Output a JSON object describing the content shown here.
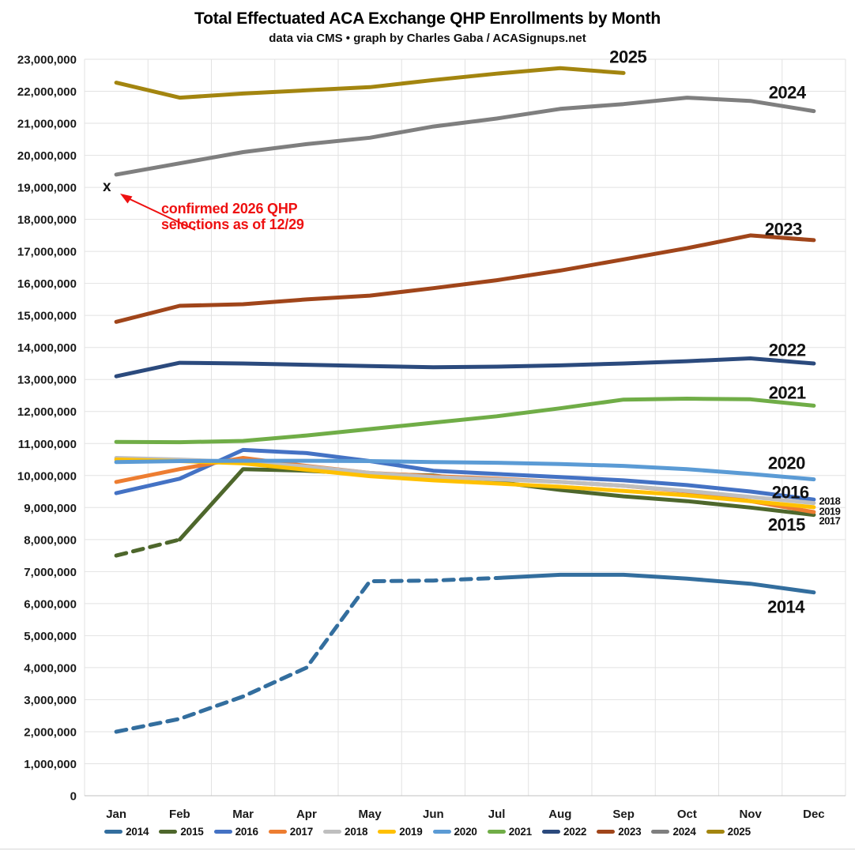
{
  "title": "Total Effectuated ACA Exchange QHP Enrollments by Month",
  "subtitle": "data via CMS • graph by Charles Gaba / ACASignups.net",
  "annotation": {
    "marker": "x",
    "text_line1": "confirmed 2026 QHP",
    "text_line2": "selections as of 12/29",
    "color": "#ee1111",
    "marker_month": "Jan",
    "marker_value": 19000000
  },
  "chart_data": {
    "type": "line",
    "categories": [
      "Jan",
      "Feb",
      "Mar",
      "Apr",
      "May",
      "Jun",
      "Jul",
      "Aug",
      "Sep",
      "Oct",
      "Nov",
      "Dec"
    ],
    "xlabel": "",
    "ylabel": "",
    "ylim": [
      0,
      23000000
    ],
    "ytick_step": 1000000,
    "grid": true,
    "legend_position": "bottom",
    "gridline_color": "#e2e2e2",
    "axis_line_color": "#c0c0c0",
    "label_color": "#1a1a1a",
    "series": [
      {
        "name": "2014",
        "color": "#336e9e",
        "dashed_through_index": 6,
        "values": [
          2000000,
          2400000,
          3100000,
          4000000,
          6700000,
          6720000,
          6800000,
          6900000,
          6900000,
          6780000,
          6620000,
          6350000
        ],
        "label": {
          "m": 10.56,
          "v": 5900000,
          "small": false
        }
      },
      {
        "name": "2015",
        "color": "#4e672c",
        "dashed_through_index": 1,
        "values": [
          7500000,
          8000000,
          10200000,
          10150000,
          10050000,
          10000000,
          9800000,
          9550000,
          9350000,
          9200000,
          9000000,
          8770000
        ],
        "label": {
          "m": 10.57,
          "v": 8470000,
          "small": false
        }
      },
      {
        "name": "2016",
        "color": "#4472c4",
        "values": [
          9450000,
          9900000,
          10800000,
          10700000,
          10450000,
          10150000,
          10050000,
          9950000,
          9850000,
          9700000,
          9500000,
          9250000
        ],
        "label": {
          "m": 10.63,
          "v": 9480000,
          "small": false
        }
      },
      {
        "name": "2017",
        "color": "#ed7d31",
        "values": [
          9800000,
          10200000,
          10550000,
          10300000,
          10080000,
          9980000,
          9900000,
          9800000,
          9680000,
          9500000,
          9200000,
          8860000
        ],
        "label": {
          "m": 11.25,
          "v": 8590000,
          "small": true
        }
      },
      {
        "name": "2018",
        "color": "#bfbfbf",
        "values": [
          10550000,
          10500000,
          10420000,
          10280000,
          10080000,
          9950000,
          9880000,
          9800000,
          9680000,
          9520000,
          9330000,
          9140000
        ],
        "label": {
          "m": 11.25,
          "v": 9210000,
          "small": true
        }
      },
      {
        "name": "2019",
        "color": "#ffc000",
        "values": [
          10500000,
          10450000,
          10380000,
          10180000,
          9980000,
          9850000,
          9750000,
          9650000,
          9520000,
          9380000,
          9200000,
          9010000
        ],
        "label": {
          "m": 11.25,
          "v": 8890000,
          "small": true
        }
      },
      {
        "name": "2020",
        "color": "#5b9bd5",
        "values": [
          10420000,
          10450000,
          10460000,
          10460000,
          10450000,
          10420000,
          10400000,
          10360000,
          10300000,
          10200000,
          10050000,
          9880000
        ],
        "label": {
          "m": 10.57,
          "v": 10390000,
          "small": false
        }
      },
      {
        "name": "2021",
        "color": "#70ad47",
        "values": [
          11050000,
          11040000,
          11080000,
          11250000,
          11450000,
          11650000,
          11850000,
          12100000,
          12370000,
          12400000,
          12380000,
          12180000
        ],
        "label": {
          "m": 10.58,
          "v": 12590000,
          "small": false
        }
      },
      {
        "name": "2022",
        "color": "#2b4a7d",
        "values": [
          13100000,
          13520000,
          13500000,
          13460000,
          13420000,
          13380000,
          13400000,
          13440000,
          13500000,
          13570000,
          13660000,
          13500000
        ],
        "label": {
          "m": 10.58,
          "v": 13920000,
          "small": false
        }
      },
      {
        "name": "2023",
        "color": "#a0451a",
        "values": [
          14800000,
          15300000,
          15350000,
          15500000,
          15620000,
          15850000,
          16100000,
          16400000,
          16750000,
          17100000,
          17500000,
          17350000
        ],
        "label": {
          "m": 10.52,
          "v": 17700000,
          "small": false
        }
      },
      {
        "name": "2024",
        "color": "#7f7f7f",
        "values": [
          19400000,
          19750000,
          20100000,
          20350000,
          20550000,
          20900000,
          21150000,
          21450000,
          21600000,
          21800000,
          21700000,
          21380000
        ],
        "label": {
          "m": 10.58,
          "v": 21960000,
          "small": false
        }
      },
      {
        "name": "2025",
        "color": "#a3850f",
        "values": [
          22270000,
          21800000,
          21930000,
          22030000,
          22130000,
          22350000,
          22550000,
          22720000,
          22570000
        ],
        "label": {
          "m": 8.07,
          "v": 23080000,
          "small": false
        }
      }
    ]
  }
}
